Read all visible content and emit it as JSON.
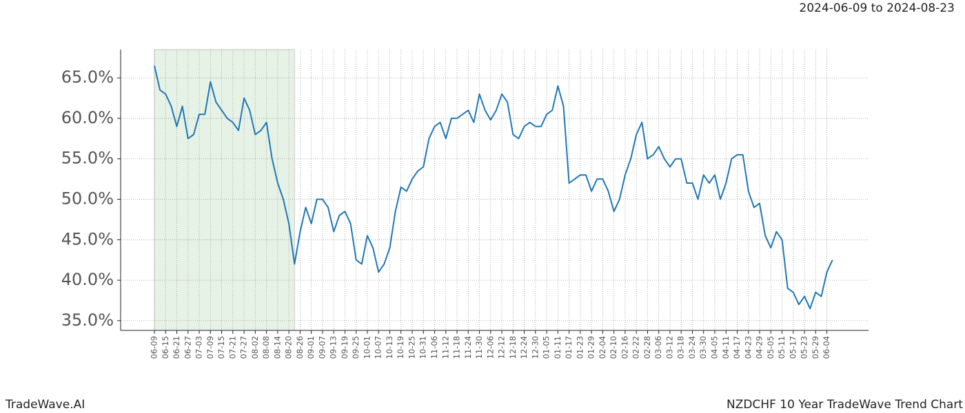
{
  "chart_data": {
    "type": "line",
    "subtitle": "2024-06-09 to 2024-08-23",
    "footer_left": "TradeWave.AI",
    "footer_right": "NZDCHF 10 Year TradeWave Trend Chart",
    "color": "#1f77b4",
    "shade_color": "#e6f2e6",
    "shaded_range": [
      0,
      25
    ],
    "grid": true,
    "categories": [
      "06-09",
      null,
      "06-15",
      null,
      "06-21",
      null,
      "06-27",
      null,
      "07-03",
      null,
      "07-09",
      null,
      "07-15",
      null,
      "07-21",
      null,
      "07-27",
      null,
      "08-02",
      null,
      "08-08",
      null,
      "08-14",
      null,
      "08-20",
      null,
      "08-26",
      null,
      "09-01",
      null,
      "09-07",
      null,
      "09-13",
      null,
      "09-19",
      null,
      "09-25",
      null,
      "10-01",
      null,
      "10-07",
      null,
      "10-13",
      null,
      "10-19",
      null,
      "10-25",
      null,
      "10-31",
      null,
      "11-06",
      null,
      "11-12",
      null,
      "11-18",
      null,
      "11-24",
      null,
      "11-30",
      null,
      "12-06",
      null,
      "12-12",
      null,
      "12-18",
      null,
      "12-24",
      null,
      "12-30",
      null,
      "01-05",
      null,
      "01-11",
      null,
      "01-17",
      null,
      "01-23",
      null,
      "01-29",
      null,
      "02-04",
      null,
      "02-10",
      null,
      "02-16",
      null,
      "02-22",
      null,
      "02-28",
      null,
      "03-06",
      null,
      "03-12",
      null,
      "03-18",
      null,
      "03-24",
      null,
      "03-30",
      null,
      "04-05",
      null,
      "04-11",
      null,
      "04-17",
      null,
      "04-23",
      null,
      "04-29",
      null,
      "05-05",
      null,
      "05-11",
      null,
      "05-17",
      null,
      "05-23",
      null,
      "05-29",
      null,
      "06-04",
      null
    ],
    "values": [
      66.5,
      63.5,
      63,
      61.5,
      59,
      61.5,
      57.5,
      58,
      60.5,
      60.5,
      64.5,
      62,
      61,
      60,
      59.5,
      58.5,
      62.5,
      61,
      58,
      58.5,
      59.5,
      55,
      52,
      50,
      47,
      42,
      46,
      49,
      47,
      50,
      50,
      49,
      46,
      48,
      48.5,
      47,
      42.5,
      42,
      45.5,
      44,
      41,
      42,
      44,
      48.5,
      51.5,
      51,
      52.5,
      53.5,
      54,
      57.5,
      59,
      59.5,
      57.5,
      60,
      60,
      60.5,
      61,
      59.5,
      63,
      61,
      59.8,
      61,
      63,
      62,
      58,
      57.5,
      59,
      59.5,
      59,
      59,
      60.5,
      61,
      64,
      61.5,
      52,
      52.5,
      53,
      53,
      51,
      52.5,
      52.5,
      51,
      48.5,
      50,
      53,
      55,
      58,
      59.5,
      55,
      55.5,
      56.5,
      55,
      54,
      55,
      55,
      52,
      52,
      50,
      53,
      52,
      53,
      50,
      52,
      55,
      55.5,
      55.5,
      51,
      49,
      49.5,
      45.5,
      44,
      46,
      45,
      39,
      38.5,
      37,
      38,
      36.5,
      38.5,
      38,
      41,
      42.5
    ],
    "ylim": [
      33.8,
      68.5
    ],
    "yticks": [
      {
        "value": 35,
        "label": "35.0%"
      },
      {
        "value": 40,
        "label": "40.0%"
      },
      {
        "value": 45,
        "label": "45.0%"
      },
      {
        "value": 50,
        "label": "50.0%"
      },
      {
        "value": 55,
        "label": "55.0%"
      },
      {
        "value": 60,
        "label": "60.0%"
      },
      {
        "value": 65,
        "label": "65.0%"
      }
    ]
  }
}
